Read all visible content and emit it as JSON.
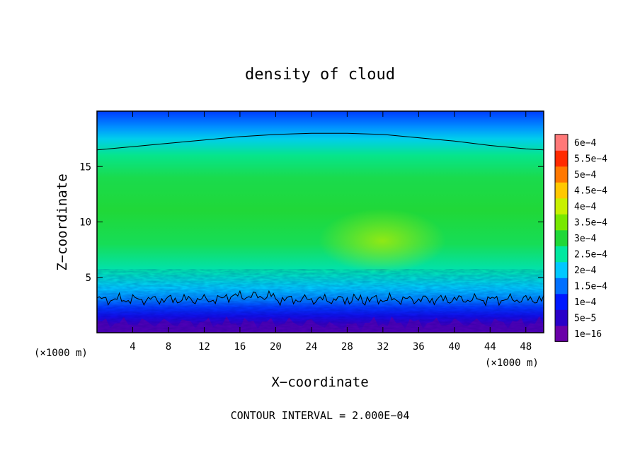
{
  "chart_data": {
    "type": "heatmap",
    "title": "density of cloud",
    "xlabel": "X−coordinate",
    "ylabel": "Z−coordinate",
    "x_unit_left": "(×1000 m)",
    "x_unit_right": "(×1000 m)",
    "footer": "CONTOUR INTERVAL = 2.000E−04",
    "xlim": [
      0,
      50
    ],
    "ylim": [
      0,
      20
    ],
    "x_ticks": [
      4,
      8,
      12,
      16,
      20,
      24,
      28,
      32,
      36,
      40,
      44,
      48
    ],
    "x_tick_labels": [
      "4",
      "8",
      "12",
      "16",
      "20",
      "24",
      "28",
      "32",
      "36",
      "40",
      "44",
      "48"
    ],
    "y_ticks": [
      5,
      10,
      15
    ],
    "y_tick_labels": [
      "5",
      "10",
      "15"
    ],
    "colorbar": {
      "levels": [
        0.0,
        5e-05,
        0.0001,
        0.00015,
        0.0002,
        0.00025,
        0.0003,
        0.00035,
        0.0004,
        0.00045,
        0.0005,
        0.00055,
        0.0006
      ],
      "labels": [
        "1e−16",
        "5e−5",
        "1e−4",
        "1.5e−4",
        "2e−4",
        "2.5e−4",
        "3e−4",
        "3.5e−4",
        "4e−4",
        "4.5e−4",
        "5e−4",
        "5.5e−4",
        "6e−4"
      ],
      "colors": [
        "#6a00a8",
        "#2a00c8",
        "#0018ff",
        "#0070ff",
        "#00c8ff",
        "#00e8a0",
        "#20d838",
        "#78e800",
        "#c8f000",
        "#ffc800",
        "#ff7800",
        "#ff2a00",
        "#ff7878"
      ]
    },
    "vertical_profile": {
      "z": [
        0,
        0.8,
        1.5,
        2.3,
        3.0,
        4.0,
        5.5,
        8,
        11,
        14,
        16,
        17.5,
        18.5,
        20
      ],
      "density": [
        2e-05,
        4e-05,
        8e-05,
        0.00012,
        0.00016,
        0.0002,
        0.00024,
        0.000285,
        0.0003,
        0.00029,
        0.00026,
        0.00021,
        0.00017,
        0.00012
      ]
    },
    "contour_levels": [
      0.0002
    ],
    "upper_contour": {
      "x": [
        0,
        4,
        8,
        12,
        16,
        20,
        24,
        28,
        32,
        36,
        40,
        44,
        48,
        50
      ],
      "z": [
        16.5,
        16.8,
        17.1,
        17.4,
        17.7,
        17.9,
        18.0,
        18.0,
        17.9,
        17.6,
        17.3,
        16.9,
        16.6,
        16.5
      ]
    },
    "lower_contour_mean_z": 3.0,
    "grid": false,
    "legend": "colorbar-right"
  }
}
